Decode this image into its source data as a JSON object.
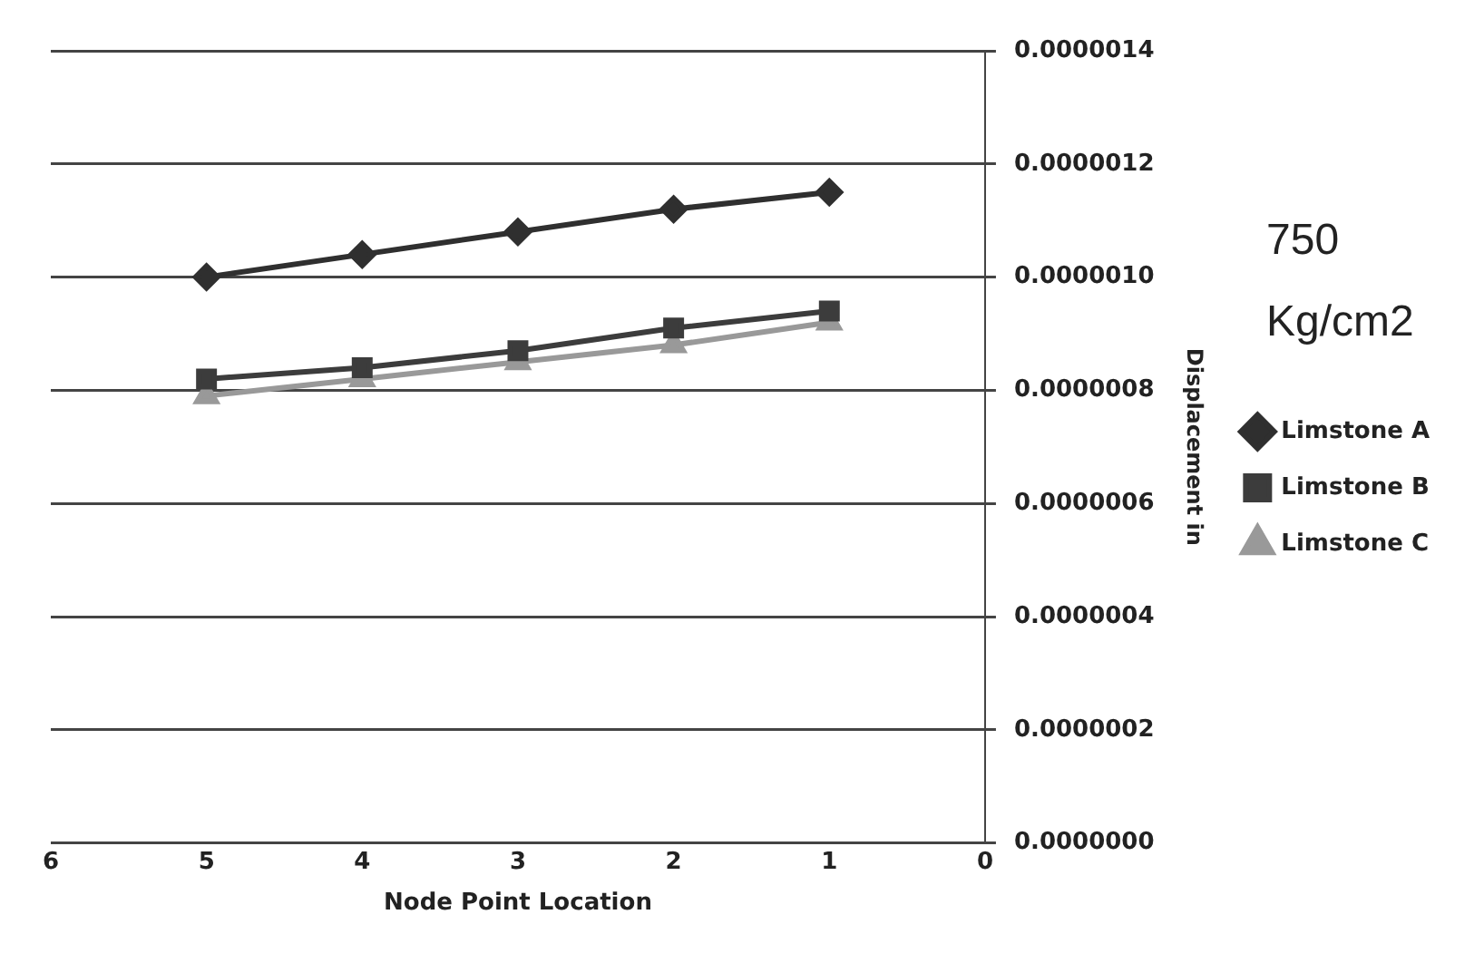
{
  "chart_data": {
    "type": "line",
    "xlabel": "Node Point Location",
    "ylabel": "Displacement in",
    "annotations": [
      "750 Kg/cm2"
    ],
    "xlim": [
      6,
      0
    ],
    "xticks": [
      6,
      5,
      4,
      3,
      2,
      1,
      0
    ],
    "ylim": [
      0,
      1.4e-06
    ],
    "yticks": [
      {
        "value": 0,
        "label": "0.0000000"
      },
      {
        "value": 2e-07,
        "label": "0.0000002"
      },
      {
        "value": 4e-07,
        "label": "0.0000004"
      },
      {
        "value": 6e-07,
        "label": "0.0000006"
      },
      {
        "value": 8e-07,
        "label": "0.0000008"
      },
      {
        "value": 1e-06,
        "label": "0.0000010"
      },
      {
        "value": 1.2e-06,
        "label": "0.0000012"
      },
      {
        "value": 1.4e-06,
        "label": "0.0000014"
      }
    ],
    "x": [
      5,
      4,
      3,
      2,
      1
    ],
    "series": [
      {
        "name": "Limstone A",
        "color": "#2f2f2f",
        "marker": "diamond",
        "values": [
          1e-06,
          1.04e-06,
          1.08e-06,
          1.12e-06,
          1.15e-06
        ]
      },
      {
        "name": "Limstone B",
        "color": "#3c3c3c",
        "marker": "square",
        "values": [
          8.2e-07,
          8.4e-07,
          8.7e-07,
          9.1e-07,
          9.4e-07
        ]
      },
      {
        "name": "Limstone C",
        "color": "#999999",
        "marker": "triangle",
        "values": [
          7.9e-07,
          8.2e-07,
          8.5e-07,
          8.8e-07,
          9.2e-07
        ]
      }
    ],
    "grid": "y",
    "legend": "right",
    "line_style": "solid"
  }
}
